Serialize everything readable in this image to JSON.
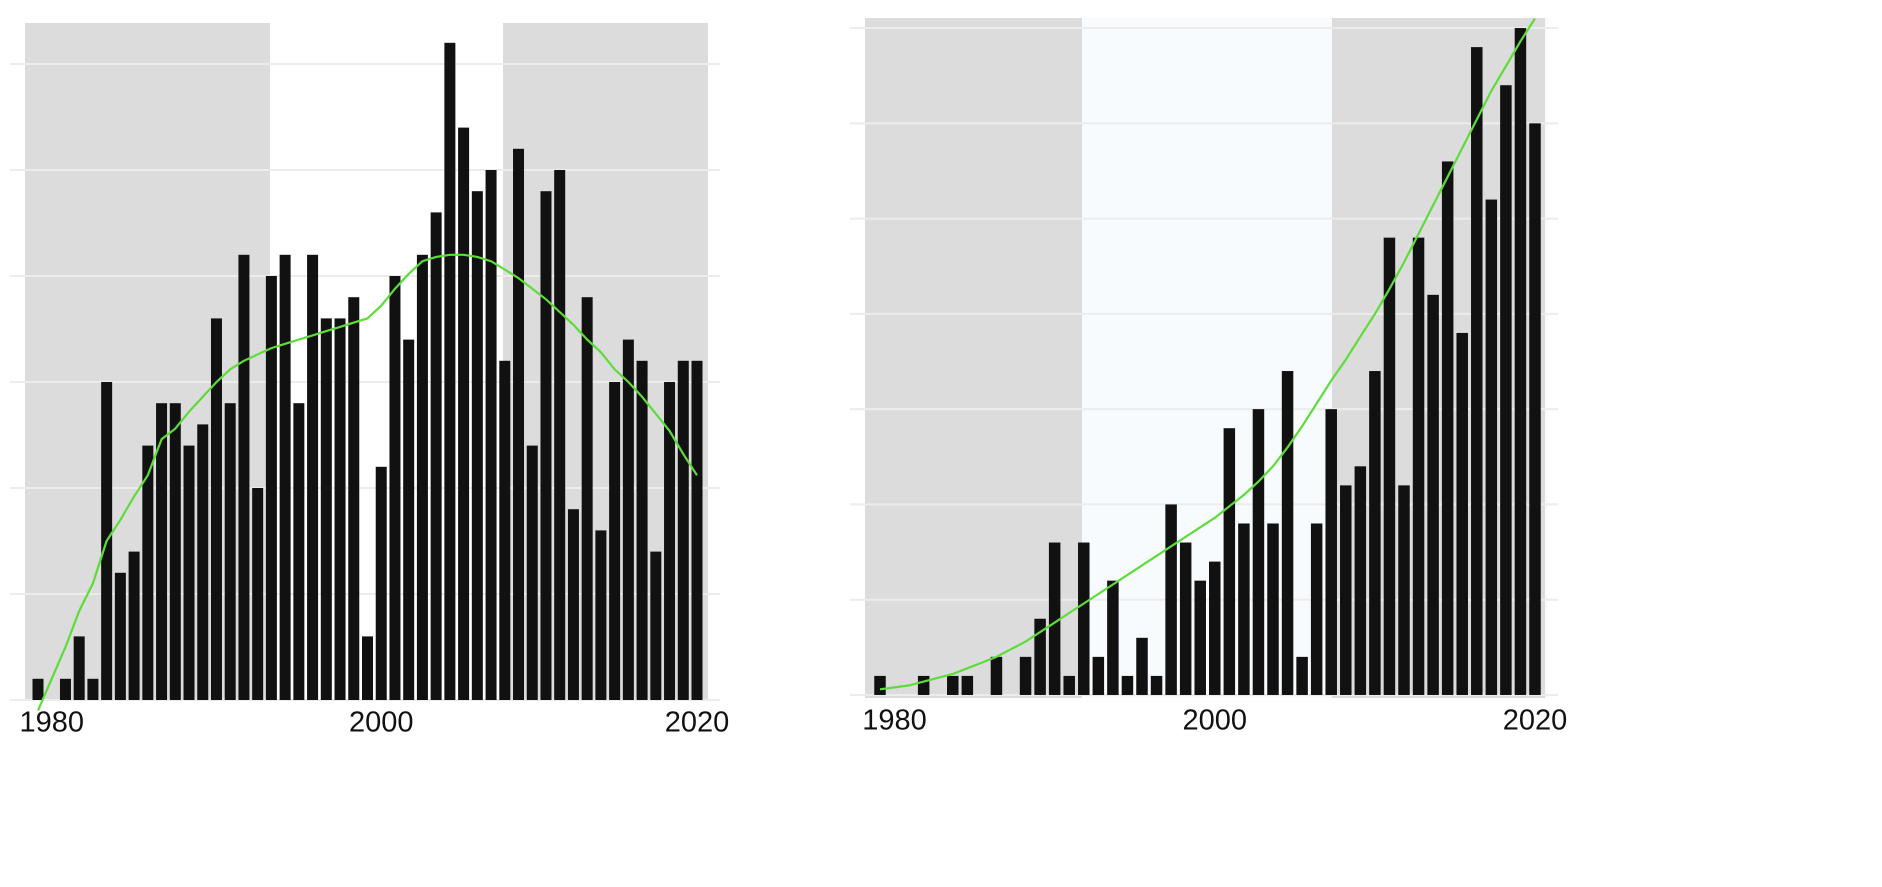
{
  "chart_data": [
    {
      "type": "bar",
      "categories": [
        null,
        "1980",
        null,
        null,
        null,
        null,
        null,
        null,
        null,
        null,
        null,
        null,
        null,
        null,
        null,
        null,
        null,
        null,
        null,
        null,
        null,
        null,
        null,
        null,
        null,
        "2000",
        null,
        null,
        null,
        null,
        null,
        null,
        null,
        null,
        null,
        null,
        null,
        null,
        null,
        null,
        null,
        null,
        null,
        null,
        null,
        null,
        null,
        null,
        "2020"
      ],
      "series": [
        {
          "type": "bar",
          "color": "#111111",
          "values": [
            1,
            0,
            1,
            3,
            1,
            15,
            6,
            7,
            12,
            14,
            14,
            12,
            13,
            18,
            14,
            21,
            10,
            20,
            21,
            14,
            21,
            18,
            18,
            19,
            3,
            11,
            20,
            17,
            21,
            23,
            31,
            27,
            24,
            25,
            16,
            26,
            12,
            24,
            25,
            9,
            19,
            8,
            15,
            17,
            16,
            7,
            15,
            16,
            16
          ]
        },
        {
          "type": "line",
          "color": "#5ddc3a",
          "values": [
            -0.5,
            1,
            2.5,
            4.2,
            5.5,
            7.5,
            8.5,
            9.6,
            10.6,
            12.3,
            12.8,
            13.6,
            14.3,
            15,
            15.6,
            16,
            16.3,
            16.6,
            16.8,
            17,
            17.2,
            17.4,
            17.6,
            17.8,
            18,
            18.6,
            19.4,
            20.1,
            20.7,
            20.9,
            21,
            21,
            20.9,
            20.7,
            20.3,
            19.9,
            19.4,
            18.9,
            18.3,
            17.7,
            17,
            16.4,
            15.6,
            15,
            14.3,
            13.5,
            12.7,
            11.6,
            10.6
          ]
        }
      ],
      "ylim": [
        -0.5,
        32
      ],
      "yticks": [
        0,
        5,
        10,
        15,
        20,
        25,
        30
      ],
      "grid": true
    },
    {
      "type": "bar",
      "categories": [
        null,
        "1980",
        null,
        null,
        null,
        null,
        null,
        null,
        null,
        null,
        null,
        null,
        null,
        null,
        null,
        null,
        null,
        null,
        null,
        null,
        null,
        null,
        null,
        "2000",
        null,
        null,
        null,
        null,
        null,
        null,
        null,
        null,
        null,
        null,
        null,
        null,
        null,
        null,
        null,
        null,
        null,
        null,
        null,
        null,
        null,
        "2020"
      ],
      "series": [
        {
          "type": "bar",
          "color": "#111111",
          "values": [
            1,
            0,
            0,
            1,
            0,
            1,
            1,
            0,
            2,
            0,
            2,
            4,
            8,
            1,
            8,
            2,
            6,
            1,
            3,
            1,
            10,
            8,
            6,
            7,
            14,
            9,
            15,
            9,
            17,
            2,
            9,
            15,
            11,
            12,
            17,
            24,
            11,
            24,
            21,
            28,
            19,
            34,
            26,
            32,
            35,
            30
          ]
        },
        {
          "type": "line",
          "color": "#5ddc3a",
          "values": [
            0.3,
            0.4,
            0.5,
            0.7,
            0.9,
            1.1,
            1.4,
            1.7,
            2,
            2.4,
            2.8,
            3.3,
            3.8,
            4.3,
            4.8,
            5.3,
            5.8,
            6.3,
            6.8,
            7.3,
            7.8,
            8.3,
            8.8,
            9.3,
            9.9,
            10.5,
            11.2,
            12,
            13,
            14.1,
            15.3,
            16.5,
            17.6,
            18.8,
            20,
            21.3,
            22.7,
            24.2,
            25.7,
            27.2,
            28.7,
            30.2,
            31.7,
            33,
            34.3,
            35.5
          ]
        }
      ],
      "ylim": [
        -0.5,
        36
      ],
      "yticks": [
        0,
        5,
        10,
        15,
        20,
        25,
        30,
        35
      ],
      "grid": true
    }
  ]
}
